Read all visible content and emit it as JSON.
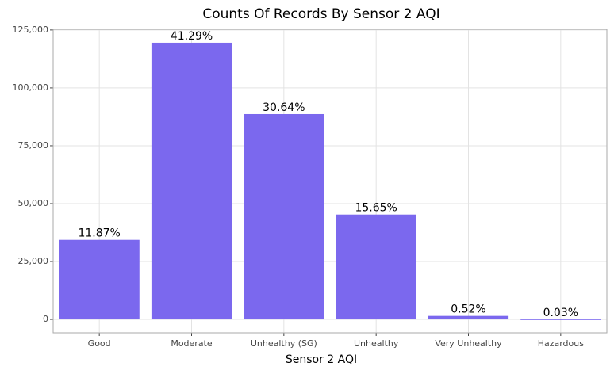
{
  "chart_data": {
    "type": "bar",
    "title": "Counts Of Records By Sensor 2 AQI",
    "x_label": "Sensor 2 AQI",
    "categories": [
      "Good",
      "Moderate",
      "Unhealthy (SG)",
      "Unhealthy",
      "Very Unhealthy",
      "Hazardous"
    ],
    "values": [
      34350,
      119500,
      88680,
      45300,
      1505,
      87
    ],
    "value_labels": [
      "11.87%",
      "41.29%",
      "30.64%",
      "15.65%",
      "0.52%",
      "0.03%"
    ],
    "color": "#7b68ee",
    "ylim": [
      -5800,
      125300
    ],
    "yticks": [
      0,
      {
        "value": 25000,
        "label": "25,000"
      },
      {
        "value": 50000,
        "label": "50,000"
      },
      {
        "value": 75000,
        "label": "75,000"
      },
      {
        "value": 100000,
        "label": "100,000"
      },
      {
        "value": 125000,
        "label": "125,000"
      }
    ],
    "grid": true
  }
}
